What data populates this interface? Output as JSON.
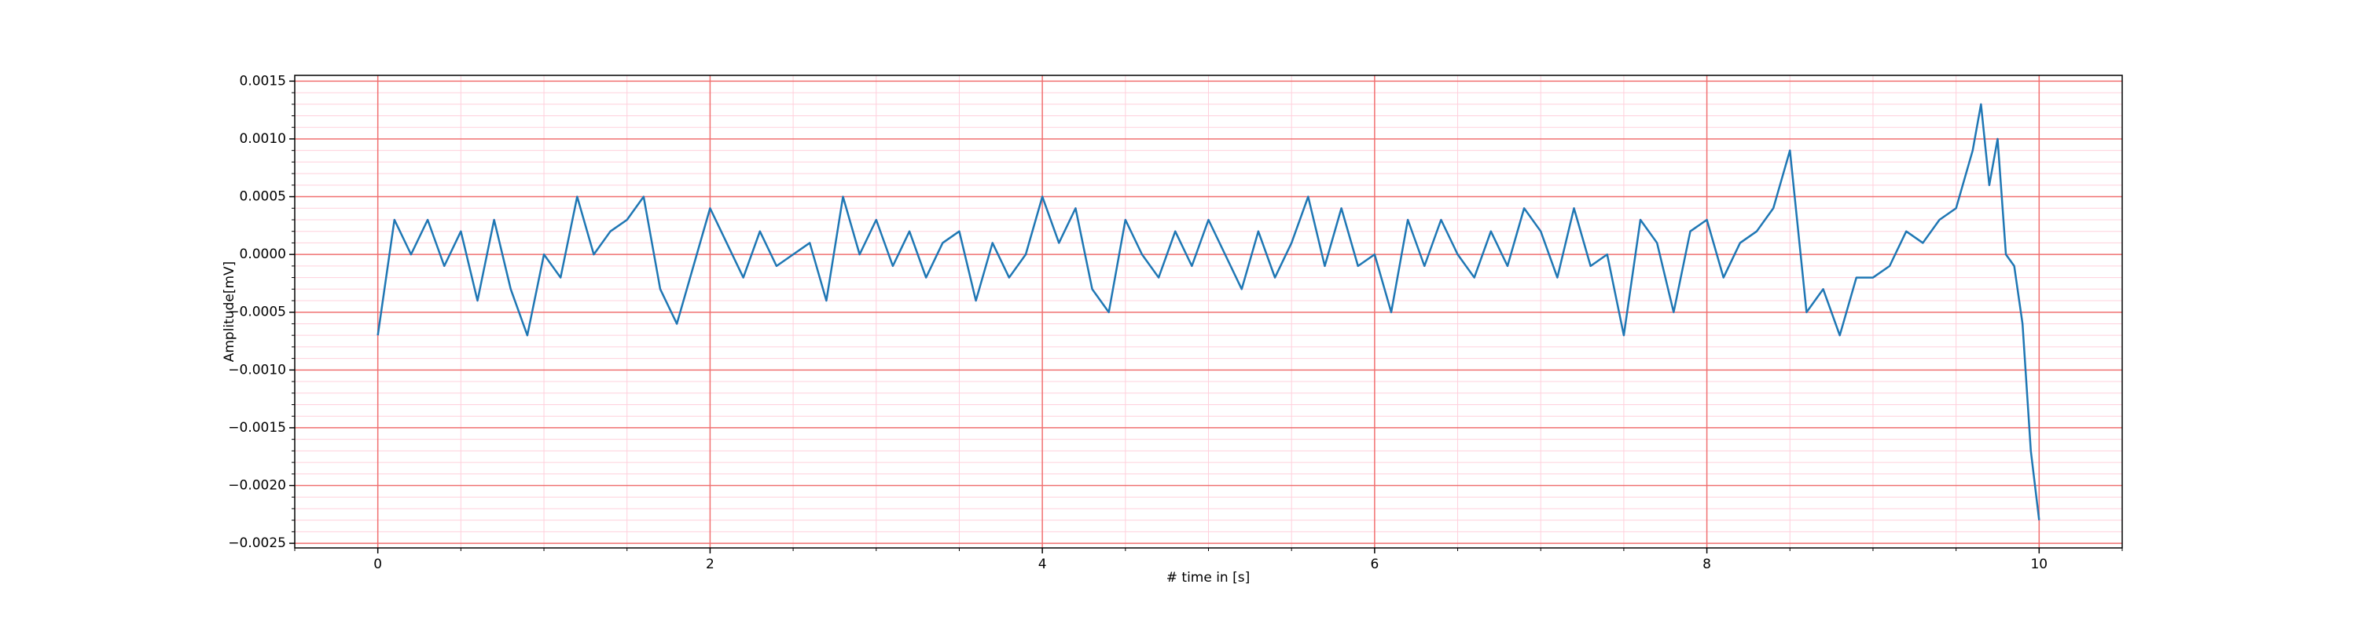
{
  "chart_data": {
    "type": "line",
    "xlabel": "# time in [s]",
    "ylabel": "Amplitude[mV]",
    "color": "#1f77b4",
    "grid": true,
    "grid_color": "#f07070",
    "minor_grid": true,
    "minor_grid_color": "#ffd0dc",
    "xlim": [
      -0.5,
      10.5
    ],
    "ylim": [
      -0.00254,
      0.00155
    ],
    "xticks": [
      0,
      2,
      4,
      6,
      8,
      10
    ],
    "yticks": [
      {
        "value": -0.0025,
        "label": "−0.0025"
      },
      {
        "value": -0.002,
        "label": "−0.0020"
      },
      {
        "value": -0.0015,
        "label": "−0.0015"
      },
      {
        "value": -0.001,
        "label": "−0.0010"
      },
      {
        "value": -0.0005,
        "label": "−0.0005"
      },
      {
        "value": 0,
        "label": "0.0000"
      },
      {
        "value": 0.0005,
        "label": "0.0005"
      },
      {
        "value": 0.001,
        "label": "0.0010"
      },
      {
        "value": 0.0015,
        "label": "0.0015"
      }
    ],
    "xminor": [
      -0.5,
      0.5,
      1,
      1.5,
      2.5,
      3,
      3.5,
      4.5,
      5,
      5.5,
      6.5,
      7,
      7.5,
      8.5,
      9,
      9.5,
      10.5
    ],
    "yminor": [
      -0.0024,
      -0.0023,
      -0.0022,
      -0.0021,
      -0.0019,
      -0.0018,
      -0.0017,
      -0.0016,
      -0.0014,
      -0.0013,
      -0.0012,
      -0.0011,
      -0.0009,
      -0.0008,
      -0.0007,
      -0.0006,
      -0.0004,
      -0.0003,
      -0.0002,
      -0.0001,
      0.0001,
      0.0002,
      0.0003,
      0.0004,
      0.0006,
      0.0007,
      0.0008,
      0.0009,
      0.0011,
      0.0012,
      0.0013,
      0.0014
    ],
    "x": [
      0,
      0.1,
      0.2,
      0.3,
      0.4,
      0.5,
      0.6,
      0.7,
      0.8,
      0.9,
      1,
      1.1,
      1.2,
      1.3,
      1.4,
      1.5,
      1.6,
      1.7,
      1.8,
      1.9,
      2,
      2.1,
      2.2,
      2.3,
      2.4,
      2.5,
      2.6,
      2.7,
      2.8,
      2.9,
      3,
      3.1,
      3.2,
      3.3,
      3.4,
      3.5,
      3.6,
      3.7,
      3.8,
      3.9,
      4,
      4.1,
      4.2,
      4.3,
      4.4,
      4.5,
      4.6,
      4.7,
      4.8,
      4.9,
      5,
      5.1,
      5.2,
      5.3,
      5.4,
      5.5,
      5.6,
      5.7,
      5.8,
      5.9,
      6,
      6.1,
      6.2,
      6.3,
      6.4,
      6.5,
      6.6,
      6.7,
      6.8,
      6.9,
      7,
      7.1,
      7.2,
      7.3,
      7.4,
      7.5,
      7.6,
      7.7,
      7.8,
      7.9,
      8,
      8.1,
      8.2,
      8.3,
      8.4,
      8.5,
      8.6,
      8.7,
      8.8,
      8.9,
      9,
      9.1,
      9.2,
      9.3,
      9.4,
      9.5,
      9.6,
      9.65,
      9.7,
      9.75,
      9.8,
      9.85,
      9.9,
      9.95,
      10
    ],
    "values": [
      -0.0007,
      0.0003,
      0,
      0.0003,
      -0.0001,
      0.0002,
      -0.0004,
      0.0003,
      -0.0003,
      -0.0007,
      0,
      -0.0002,
      0.0005,
      0,
      0.0002,
      0.0003,
      0.0005,
      -0.0003,
      -0.0006,
      -0.0001,
      0.0004,
      0.0001,
      -0.0002,
      0.0002,
      -0.0001,
      0,
      0.0001,
      -0.0004,
      0.0005,
      0,
      0.0003,
      -0.0001,
      0.0002,
      -0.0002,
      0.0001,
      0.0002,
      -0.0004,
      0.0001,
      -0.0002,
      0,
      0.0005,
      0.0001,
      0.0004,
      -0.0003,
      -0.0005,
      0.0003,
      0,
      -0.0002,
      0.0002,
      -0.0001,
      0.0003,
      0,
      -0.0003,
      0.0002,
      -0.0002,
      0.0001,
      0.0005,
      -0.0001,
      0.0004,
      -0.0001,
      0,
      -0.0005,
      0.0003,
      -0.0001,
      0.0003,
      0,
      -0.0002,
      0.0002,
      -0.0001,
      0.0004,
      0.0002,
      -0.0002,
      0.0004,
      -0.0001,
      0,
      -0.0007,
      0.0003,
      0.0001,
      -0.0005,
      0.0002,
      0.0003,
      -0.0002,
      0.0001,
      0.0002,
      0.0004,
      0.0009,
      -0.0005,
      -0.0003,
      -0.0007,
      -0.0002,
      -0.0002,
      -0.0001,
      0.0002,
      0.0001,
      0.0003,
      0.0004,
      0.0009,
      0.0013,
      0.0006,
      0.001,
      0,
      -0.0001,
      -0.0006,
      -0.0017,
      -0.0023
    ]
  }
}
